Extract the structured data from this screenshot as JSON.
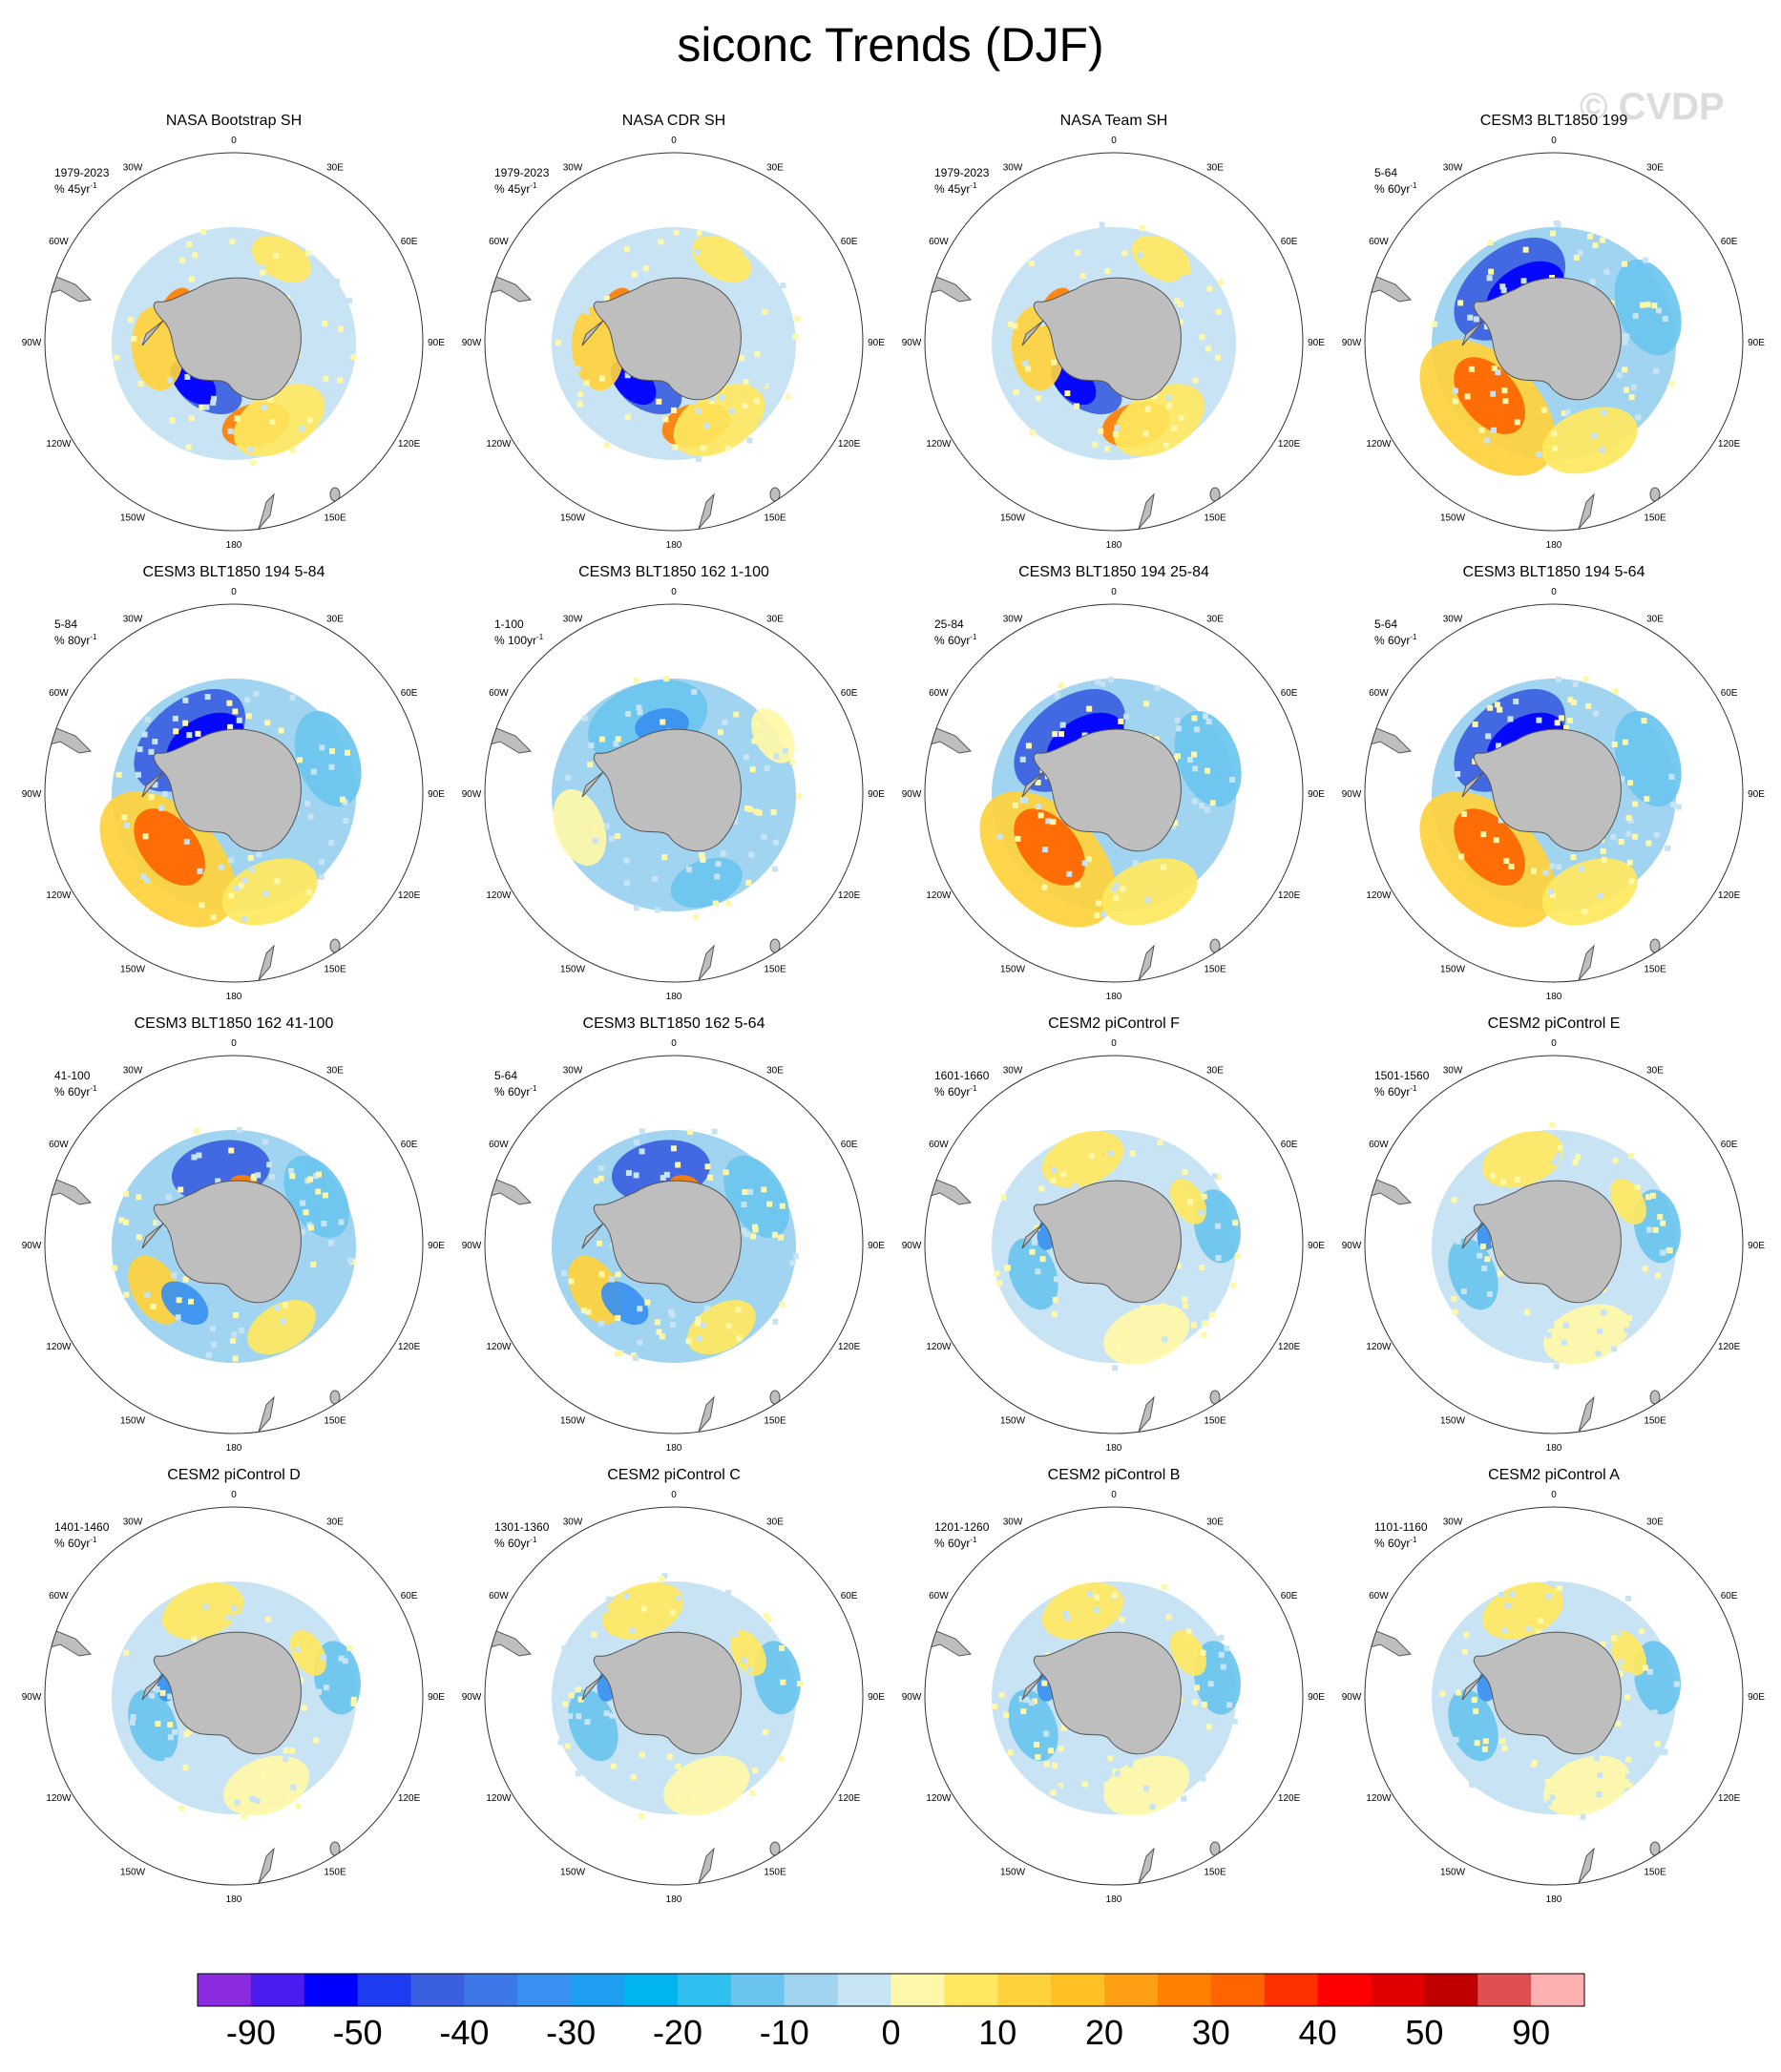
{
  "title": "siconc Trends (DJF)",
  "watermark": "© CVDP",
  "longitude_labels": [
    "0",
    "30E",
    "60E",
    "90E",
    "120E",
    "150E",
    "180",
    "150W",
    "120W",
    "90W",
    "60W",
    "30W"
  ],
  "panels": [
    {
      "title": "NASA Bootstrap SH",
      "period": "1979-2023",
      "units": "% 45yr",
      "pattern": "obs"
    },
    {
      "title": "NASA CDR SH",
      "period": "1979-2023",
      "units": "% 45yr",
      "pattern": "obs"
    },
    {
      "title": "NASA Team SH",
      "period": "1979-2023",
      "units": "% 45yr",
      "pattern": "obs"
    },
    {
      "title": "CESM3 BLT1850 199",
      "period": "5-64",
      "units": "% 60yr",
      "pattern": "strong"
    },
    {
      "title": "CESM3 BLT1850 194 5-84",
      "period": "5-84",
      "units": "% 80yr",
      "pattern": "strong"
    },
    {
      "title": "CESM3 BLT1850 162 1-100",
      "period": "1-100",
      "units": "% 100yr",
      "pattern": "weakneg"
    },
    {
      "title": "CESM3 BLT1850 194 25-84",
      "period": "25-84",
      "units": "% 60yr",
      "pattern": "strong"
    },
    {
      "title": "CESM3 BLT1850 194 5-64",
      "period": "5-64",
      "units": "% 60yr",
      "pattern": "strong"
    },
    {
      "title": "CESM3 BLT1850 162 41-100",
      "period": "41-100",
      "units": "% 60yr",
      "pattern": "mixed"
    },
    {
      "title": "CESM3 BLT1850 162 5-64",
      "period": "5-64",
      "units": "% 60yr",
      "pattern": "mixed"
    },
    {
      "title": "CESM2 piControl F",
      "period": "1601-1660",
      "units": "% 60yr",
      "pattern": "weakpos"
    },
    {
      "title": "CESM2 piControl E",
      "period": "1501-1560",
      "units": "% 60yr",
      "pattern": "weakpos"
    },
    {
      "title": "CESM2 piControl D",
      "period": "1401-1460",
      "units": "% 60yr",
      "pattern": "weakpos"
    },
    {
      "title": "CESM2 piControl C",
      "period": "1301-1360",
      "units": "% 60yr",
      "pattern": "weakpos"
    },
    {
      "title": "CESM2 piControl B",
      "period": "1201-1260",
      "units": "% 60yr",
      "pattern": "weakpos"
    },
    {
      "title": "CESM2 piControl A",
      "period": "1101-1160",
      "units": "% 60yr",
      "pattern": "weakpos"
    }
  ],
  "colorbar": {
    "colors": [
      "#8a2be2",
      "#4b1cf0",
      "#0000ff",
      "#1e3cf0",
      "#3a5fe0",
      "#3c78e8",
      "#3890f0",
      "#1e9ef0",
      "#00b4f0",
      "#30c0f0",
      "#6ac4ee",
      "#a0d4f0",
      "#c8e4f4",
      "#fff8a8",
      "#ffe860",
      "#ffd23c",
      "#ffc024",
      "#ffa014",
      "#ff8000",
      "#ff6400",
      "#ff3000",
      "#ff0000",
      "#e00000",
      "#c00000",
      "#e05050",
      "#ffb0b0"
    ],
    "tick_labels": [
      "-90",
      "-50",
      "-40",
      "-30",
      "-20",
      "-10",
      "0",
      "10",
      "20",
      "30",
      "40",
      "50",
      "90"
    ]
  }
}
